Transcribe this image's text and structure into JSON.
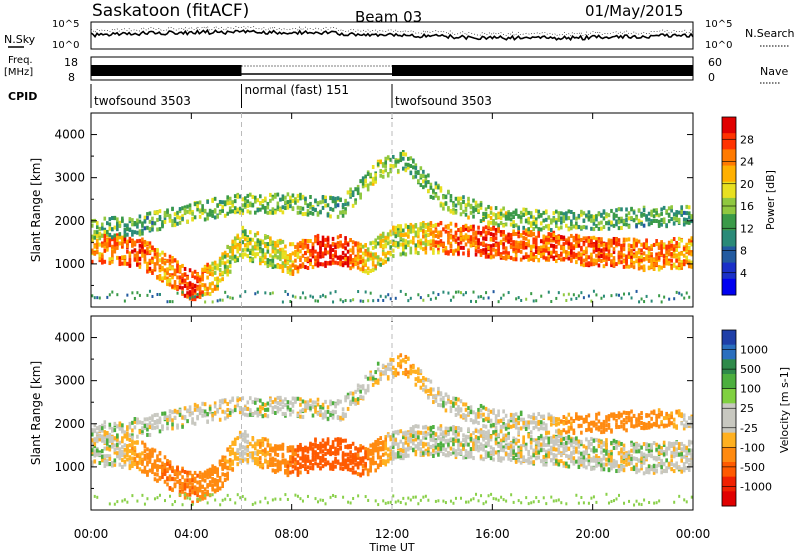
{
  "header": {
    "site": "Saskatoon (fitACF)",
    "beam": "Beam 03",
    "date": "01/May/2015"
  },
  "noise_panel": {
    "left_label": "N.Sky",
    "right_label": "N.Search",
    "left_ticks": [
      "10^5",
      "10^0"
    ],
    "right_ticks": [
      "10^5",
      "10^0"
    ]
  },
  "freq_panel": {
    "left_label_line1": "Freq.",
    "left_label_line2": "[MHz]",
    "right_label": "Nave",
    "left_ticks": [
      "18",
      "8"
    ],
    "right_ticks": [
      "60",
      "0"
    ]
  },
  "cpid": {
    "label": "CPID",
    "segments": [
      {
        "name": "twofsound 3503",
        "start_h": 0,
        "end_h": 6
      },
      {
        "name": "normal (fast) 151",
        "start_h": 6,
        "end_h": 12
      },
      {
        "name": "twofsound 3503",
        "start_h": 12,
        "end_h": 24
      }
    ]
  },
  "colorbars": {
    "power": {
      "label": "Power [dB]",
      "ticks": [
        "28",
        "24",
        "20",
        "16",
        "12",
        "8",
        "4"
      ],
      "colors": [
        "#e00000",
        "#ff3300",
        "#ff7a00",
        "#ffb000",
        "#e8e020",
        "#90c840",
        "#3a9a48",
        "#2a8a78",
        "#225aa0",
        "#1a30c8",
        "#0000f0"
      ]
    },
    "velocity": {
      "label": "Velocity [m s-1]",
      "ticks": [
        "1000",
        "500",
        "100",
        "25",
        "-25",
        "-100",
        "-500",
        "-1000"
      ],
      "colors": [
        "#1f3fa8",
        "#2a6fbf",
        "#2e8a4a",
        "#4caf3e",
        "#80d040",
        "#c8c8c0",
        "#c8c8c0",
        "#ffb020",
        "#ff8a10",
        "#ff5a00",
        "#f02000",
        "#e00000"
      ]
    }
  },
  "chart_data": [
    {
      "type": "heatmap",
      "quantity": "Power",
      "ylabel": "Slant Range [km]",
      "xlabel": "",
      "x_unit": "hours UT",
      "xlim": [
        0,
        24
      ],
      "ylim": [
        0,
        4500
      ],
      "yticks": [
        1000,
        2000,
        3000,
        4000
      ],
      "grid": false,
      "features": [
        {
          "band": "main echo",
          "t": [
            0,
            1,
            2,
            3,
            4,
            5,
            6,
            7,
            8,
            9,
            10,
            11,
            12,
            13,
            14,
            16,
            18,
            20,
            22,
            24
          ],
          "range_km": [
            1400,
            1350,
            1250,
            900,
            500,
            700,
            1500,
            1300,
            1100,
            1300,
            1300,
            1100,
            1500,
            1600,
            1600,
            1500,
            1400,
            1300,
            1200,
            1250
          ],
          "power_db": [
            22,
            24,
            26,
            22,
            28,
            18,
            16,
            16,
            20,
            28,
            28,
            20,
            16,
            18,
            24,
            26,
            24,
            26,
            24,
            22
          ]
        },
        {
          "band": "upper echo",
          "t": [
            0,
            2,
            4,
            6,
            8,
            10,
            11.5,
            12.5,
            14,
            16,
            18,
            20,
            22,
            24
          ],
          "range_km": [
            1800,
            1900,
            2200,
            2400,
            2400,
            2300,
            3200,
            3400,
            2500,
            2100,
            2000,
            2000,
            2100,
            2100
          ],
          "power_db": [
            14,
            12,
            14,
            14,
            14,
            12,
            16,
            14,
            14,
            16,
            14,
            12,
            12,
            12
          ]
        }
      ]
    },
    {
      "type": "heatmap",
      "quantity": "Velocity",
      "ylabel": "Slant Range [km]",
      "xlabel": "Time UT",
      "x_unit": "hours UT",
      "xlim": [
        0,
        24
      ],
      "ylim": [
        0,
        4500
      ],
      "yticks": [
        1000,
        2000,
        3000,
        4000
      ],
      "xticks": [
        "00:00",
        "04:00",
        "08:00",
        "12:00",
        "16:00",
        "20:00",
        "00:00"
      ],
      "grid": false,
      "features": [
        {
          "band": "main echo",
          "t": [
            0,
            1,
            2,
            3,
            4,
            5,
            6,
            7,
            8,
            9,
            10,
            11,
            12,
            13,
            14,
            16,
            18,
            20,
            22,
            24
          ],
          "range_km": [
            1400,
            1350,
            1250,
            900,
            500,
            700,
            1500,
            1300,
            1100,
            1300,
            1300,
            1100,
            1500,
            1600,
            1600,
            1500,
            1400,
            1300,
            1200,
            1250
          ],
          "velocity_ms": [
            0,
            0,
            -100,
            -300,
            -300,
            -200,
            0,
            -100,
            -300,
            -400,
            -400,
            -300,
            0,
            0,
            0,
            0,
            0,
            0,
            0,
            0
          ]
        },
        {
          "band": "upper echo",
          "t": [
            0,
            2,
            4,
            6,
            8,
            10,
            11.5,
            12.5,
            14,
            16,
            18,
            20,
            22,
            24
          ],
          "range_km": [
            1800,
            1900,
            2200,
            2400,
            2400,
            2300,
            3200,
            3400,
            2500,
            2100,
            2000,
            2000,
            2100,
            2100
          ],
          "velocity_ms": [
            0,
            0,
            0,
            0,
            0,
            0,
            0,
            -100,
            0,
            0,
            0,
            -200,
            -200,
            0
          ]
        }
      ]
    }
  ]
}
